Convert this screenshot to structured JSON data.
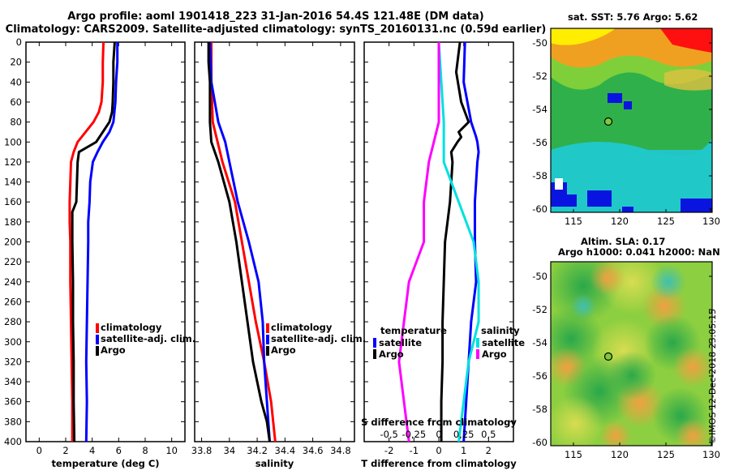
{
  "header": {
    "title_line1": "Argo profile: aoml 1901418_223 31-Jan-2016 54.4S 121.48E (DM data)",
    "title_line2": "Climatology: CARS2009. Satellite-adjusted climatology: synTS_20160131.nc (0.59d earlier)"
  },
  "colors": {
    "climatology": "#ff0000",
    "satellite": "#0000ff",
    "argo": "#000000",
    "s_satellite": "#00e0e0",
    "s_argo": "#ff00ff"
  },
  "depth_ticks": [
    "0",
    "20",
    "40",
    "60",
    "80",
    "100",
    "120",
    "140",
    "160",
    "180",
    "200",
    "220",
    "240",
    "260",
    "280",
    "300",
    "320",
    "340",
    "360",
    "380",
    "400"
  ],
  "chart_data": [
    {
      "type": "line",
      "name": "temperature",
      "xlabel": "temperature (deg C)",
      "xlim": [
        -1,
        11
      ],
      "ylim": [
        400,
        0
      ],
      "xticks": [
        "0",
        "2",
        "4",
        "6",
        "8",
        "10"
      ],
      "legend": [
        "climatology",
        "satellite-adj. clim.",
        "Argo"
      ],
      "series": [
        {
          "name": "climatology",
          "depth": [
            0,
            20,
            40,
            60,
            70,
            80,
            90,
            100,
            110,
            120,
            140,
            160,
            180,
            200,
            240,
            280,
            320,
            360,
            400
          ],
          "values": [
            4.85,
            4.8,
            4.8,
            4.7,
            4.5,
            4.1,
            3.5,
            2.9,
            2.6,
            2.4,
            2.35,
            2.3,
            2.3,
            2.35,
            2.35,
            2.4,
            2.45,
            2.5,
            2.5
          ]
        },
        {
          "name": "satellite-adj. clim.",
          "depth": [
            0,
            20,
            40,
            60,
            80,
            90,
            100,
            110,
            120,
            140,
            160,
            180,
            200,
            240,
            280,
            320,
            360,
            400
          ],
          "values": [
            5.9,
            5.9,
            5.8,
            5.75,
            5.6,
            5.3,
            4.8,
            4.4,
            4.05,
            3.85,
            3.8,
            3.7,
            3.7,
            3.65,
            3.6,
            3.55,
            3.6,
            3.55
          ]
        },
        {
          "name": "Argo",
          "depth": [
            0,
            20,
            40,
            60,
            70,
            80,
            90,
            100,
            110,
            120,
            140,
            160,
            170,
            180,
            200,
            240,
            280,
            320,
            360,
            400
          ],
          "values": [
            5.7,
            5.6,
            5.6,
            5.55,
            5.5,
            5.3,
            4.8,
            4.3,
            3.0,
            2.9,
            2.85,
            2.8,
            2.5,
            2.5,
            2.5,
            2.55,
            2.55,
            2.6,
            2.6,
            2.65
          ]
        }
      ]
    },
    {
      "type": "line",
      "name": "salinity",
      "xlabel": "salinity",
      "xlim": [
        33.75,
        34.9
      ],
      "ylim": [
        400,
        0
      ],
      "xticks": [
        "33.8",
        "34",
        "34.2",
        "34.4",
        "34.6",
        "34.8"
      ],
      "legend": [
        "climatology",
        "satellite-adj. clim.",
        "Argo"
      ],
      "series": [
        {
          "name": "climatology",
          "depth": [
            0,
            40,
            80,
            120,
            160,
            200,
            240,
            280,
            320,
            360,
            400
          ],
          "values": [
            33.87,
            33.87,
            33.88,
            33.95,
            34.04,
            34.09,
            34.14,
            34.19,
            34.25,
            34.3,
            34.33
          ]
        },
        {
          "name": "satellite-adj. clim.",
          "depth": [
            0,
            40,
            80,
            100,
            120,
            160,
            200,
            240,
            280,
            320,
            360,
            400
          ],
          "values": [
            33.86,
            33.87,
            33.92,
            33.97,
            34.0,
            34.06,
            34.14,
            34.21,
            34.24,
            34.25,
            34.27,
            34.29
          ]
        },
        {
          "name": "Argo",
          "depth": [
            0,
            20,
            40,
            60,
            80,
            100,
            120,
            160,
            200,
            240,
            280,
            320,
            360,
            380,
            400
          ],
          "values": [
            33.85,
            33.85,
            33.86,
            33.86,
            33.86,
            33.87,
            33.92,
            34.0,
            34.05,
            34.09,
            34.13,
            34.17,
            34.23,
            34.27,
            34.29
          ]
        }
      ]
    },
    {
      "type": "line",
      "name": "difference",
      "xlabel": "T difference from climatology",
      "xlabel_top": "S difference from climatology",
      "xlim": [
        -3,
        3
      ],
      "ylim": [
        400,
        0
      ],
      "xticks": [
        "-2",
        "-1",
        "0",
        "1",
        "2"
      ],
      "s_ticks": [
        "-0.5",
        "-0.25",
        "0",
        "0.25",
        "0.5"
      ],
      "legend_temperature": {
        "title": "temperature",
        "items": [
          "satellite",
          "Argo"
        ]
      },
      "legend_salinity": {
        "title": "salinity",
        "items": [
          "satellite",
          "Argo"
        ]
      },
      "series": [
        {
          "name": "T satellite",
          "depth": [
            0,
            40,
            80,
            95,
            100,
            110,
            120,
            140,
            160,
            200,
            240,
            280,
            320,
            360,
            400
          ],
          "values": [
            1.05,
            1.0,
            1.3,
            1.5,
            1.55,
            1.6,
            1.55,
            1.5,
            1.45,
            1.45,
            1.5,
            1.3,
            1.2,
            1.1,
            1.0
          ]
        },
        {
          "name": "T Argo",
          "depth": [
            0,
            10,
            30,
            60,
            80,
            90,
            95,
            100,
            110,
            120,
            140,
            160,
            200,
            240,
            280,
            320,
            360,
            400
          ],
          "values": [
            0.85,
            0.8,
            0.7,
            0.9,
            1.2,
            0.8,
            0.9,
            0.75,
            0.5,
            0.55,
            0.5,
            0.45,
            0.25,
            0.2,
            0.15,
            0.15,
            0.1,
            0.1
          ]
        },
        {
          "name": "S satellite",
          "depth": [
            0,
            80,
            120,
            160,
            200,
            240,
            280,
            320,
            360,
            400
          ],
          "values": [
            0.0,
            0.05,
            0.05,
            0.2,
            0.35,
            0.4,
            0.4,
            0.3,
            0.25,
            0.2
          ]
        },
        {
          "name": "S Argo",
          "depth": [
            0,
            80,
            120,
            160,
            200,
            240,
            280,
            320,
            360,
            400
          ],
          "values": [
            0.0,
            0.0,
            -0.1,
            -0.15,
            -0.15,
            -0.3,
            -0.35,
            -0.4,
            -0.35,
            -0.3
          ]
        }
      ]
    }
  ],
  "maps": {
    "sst": {
      "caption": "sat. SST: 5.76 Argo: 5.62",
      "xticks": [
        "115",
        "120",
        "125",
        "130"
      ],
      "yticks": [
        "-50",
        "-52",
        "-54",
        "-56",
        "-58",
        "-60"
      ]
    },
    "altimetry": {
      "caption1": "Altim. SLA: 0.17",
      "caption2": "Argo h1000: 0.041 h2000: NaN",
      "xticks": [
        "115",
        "120",
        "125",
        "130"
      ],
      "yticks": [
        "-50",
        "-52",
        "-54",
        "-56",
        "-58",
        "-60"
      ]
    }
  },
  "watermark": "©IMOS 12-Dec-2018 23:05:15"
}
